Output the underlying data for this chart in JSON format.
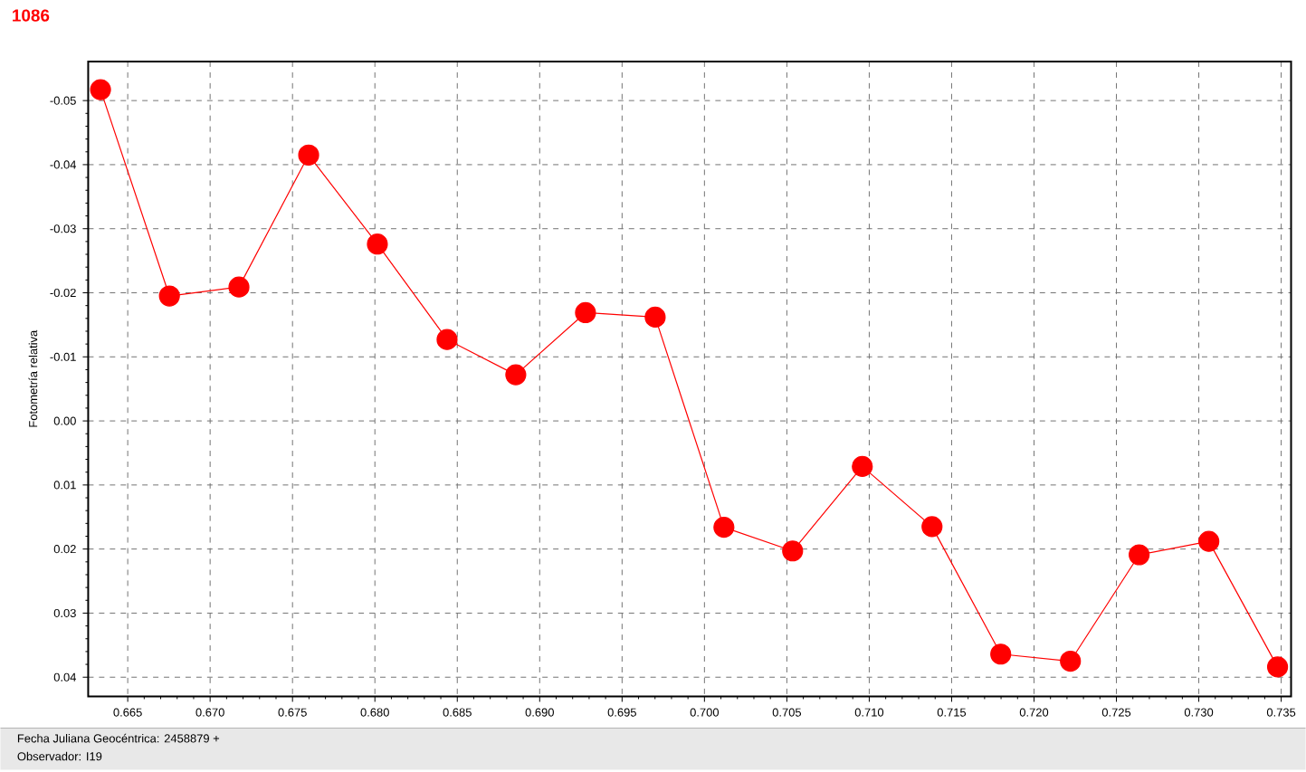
{
  "chart_data": {
    "type": "line",
    "title": "1086",
    "ylabel": "Fotometría relativa",
    "annotations": [
      "Fecha Juliana Geocéntrica: 2458879 +",
      "Observador: I19"
    ],
    "x": [
      0.66335,
      0.66753,
      0.67175,
      0.67598,
      0.68015,
      0.68438,
      0.68855,
      0.69278,
      0.69701,
      0.70118,
      0.70535,
      0.70958,
      0.71381,
      0.71798,
      0.72221,
      0.72638,
      0.73061,
      0.73478
    ],
    "series": [
      {
        "color": "#ff0000",
        "values": [
          -0.0517,
          -0.0195,
          -0.0209,
          -0.0415,
          -0.0276,
          -0.0127,
          -0.0072,
          -0.0169,
          -0.0162,
          0.0166,
          0.0203,
          0.0071,
          0.0165,
          0.0364,
          0.0375,
          0.0209,
          0.0188,
          0.0384
        ]
      }
    ],
    "xlim": [
      0.6626,
      0.7356
    ],
    "ylim": [
      0.043,
      -0.0561
    ],
    "xticks": [
      0.665,
      {
        "value": 0.67,
        "label": "0.670"
      },
      0.675,
      {
        "value": 0.68,
        "label": "0.680"
      },
      0.685,
      {
        "value": 0.69,
        "label": "0.690"
      },
      0.695,
      {
        "value": 0.7,
        "label": "0.700"
      },
      0.705,
      {
        "value": 0.71,
        "label": "0.710"
      },
      0.715,
      {
        "value": 0.72,
        "label": "0.720"
      },
      0.725,
      {
        "value": 0.73,
        "label": "0.730"
      },
      0.735
    ],
    "yticks": [
      -0.05,
      -0.04,
      -0.03,
      -0.02,
      -0.01,
      {
        "value": 0,
        "label": "0.00"
      },
      0.01,
      0.02,
      0.03,
      0.04
    ],
    "grid": true,
    "marker": "circle",
    "line_style": "solid"
  }
}
